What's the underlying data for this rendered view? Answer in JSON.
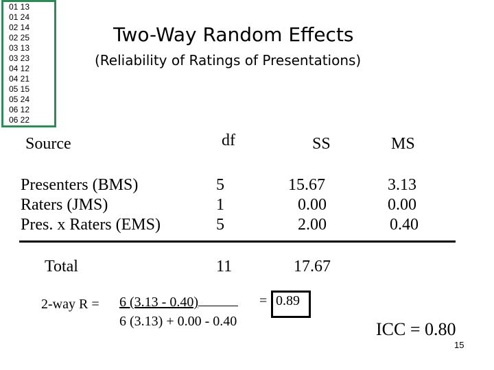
{
  "data_list": [
    "01 13",
    "01 24",
    "02 14",
    "02 25",
    "03 13",
    "03 23",
    "04 12",
    "04 21",
    "05 15",
    "05 24",
    "06 12",
    "06 22"
  ],
  "title": "Two-Way Random Effects",
  "subtitle": "(Reliability of Ratings of Presentations)",
  "table": {
    "headers": {
      "source": "Source",
      "df": "df",
      "ss": "SS",
      "ms": "MS"
    },
    "rows": [
      {
        "source": "Presenters (BMS)",
        "df": "5",
        "ss": "15.67",
        "ms": "3.13"
      },
      {
        "source": "Raters (JMS)",
        "df": "1",
        "ss": "0.00",
        "ms": "0.00"
      },
      {
        "source": "Pres. x Raters (EMS)",
        "df": "5",
        "ss": "2.00",
        "ms": "0.40"
      }
    ],
    "total": {
      "label": "Total",
      "df": "11",
      "ss": "17.67"
    }
  },
  "formula": {
    "lhs": "2-way R =",
    "numerator": "6 (3.13 - 0.40)",
    "equals": "=",
    "denominator": "6 (3.13) + 0.00 - 0.40",
    "result": "0.89"
  },
  "icc": "ICC = 0.80",
  "page_number": "15"
}
